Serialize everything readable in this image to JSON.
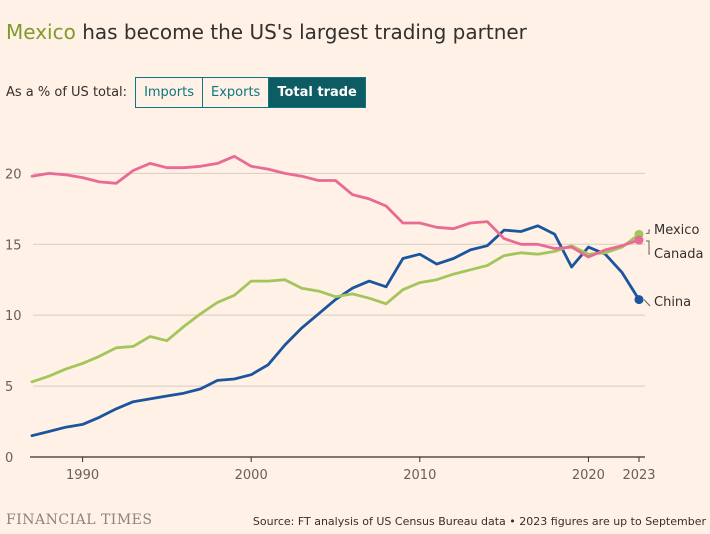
{
  "title": {
    "highlight": "Mexico",
    "rest": " has become the US's largest trading partner"
  },
  "controls": {
    "label": "As a % of US total:",
    "options": [
      "Imports",
      "Exports",
      "Total trade"
    ],
    "selected": "Total trade"
  },
  "footer": {
    "logo": "FINANCIAL TIMES",
    "source": "Source: FT analysis of US Census Bureau data • 2023 figures are up to September"
  },
  "colors": {
    "background": "#fff1e5",
    "mexico": "#a3c65a",
    "canada": "#e96b94",
    "china": "#1a559e",
    "highlight": "#809b2a",
    "button": "#0d7680"
  },
  "chart_data": {
    "type": "line",
    "xlim": [
      1987,
      2023
    ],
    "ylim": [
      0,
      22
    ],
    "x_ticks": [
      1990,
      2000,
      2010,
      2020,
      2023
    ],
    "x_tick_labels": [
      "1990",
      "2000",
      "2010",
      "2020",
      "2023"
    ],
    "y_ticks": [
      0,
      5,
      10,
      15,
      20
    ],
    "y_tick_labels": [
      "0",
      "5",
      "10",
      "15",
      "20"
    ],
    "grid": true,
    "x": [
      1987,
      1988,
      1989,
      1990,
      1991,
      1992,
      1993,
      1994,
      1995,
      1996,
      1997,
      1998,
      1999,
      2000,
      2001,
      2002,
      2003,
      2004,
      2005,
      2006,
      2007,
      2008,
      2009,
      2010,
      2011,
      2012,
      2013,
      2014,
      2015,
      2016,
      2017,
      2018,
      2019,
      2020,
      2021,
      2022,
      2023
    ],
    "series": [
      {
        "name": "Mexico",
        "color": "#a3c65a",
        "end_marker": true,
        "values": [
          5.3,
          5.7,
          6.2,
          6.6,
          7.1,
          7.7,
          7.8,
          8.5,
          8.2,
          9.2,
          10.1,
          10.9,
          11.4,
          12.4,
          12.4,
          12.5,
          11.9,
          11.7,
          11.3,
          11.5,
          11.2,
          10.8,
          11.8,
          12.3,
          12.5,
          12.9,
          13.2,
          13.5,
          14.2,
          14.4,
          14.3,
          14.5,
          14.9,
          14.3,
          14.4,
          14.8,
          15.7
        ]
      },
      {
        "name": "Canada",
        "color": "#e96b94",
        "end_marker": true,
        "values": [
          19.8,
          20.0,
          19.9,
          19.7,
          19.4,
          19.3,
          20.2,
          20.7,
          20.4,
          20.4,
          20.5,
          20.7,
          21.2,
          20.5,
          20.3,
          20.0,
          19.8,
          19.5,
          19.5,
          18.5,
          18.2,
          17.7,
          16.5,
          16.5,
          16.2,
          16.1,
          16.5,
          16.6,
          15.4,
          15.0,
          15.0,
          14.7,
          14.8,
          14.1,
          14.6,
          14.9,
          15.3
        ]
      },
      {
        "name": "China",
        "color": "#1a559e",
        "end_marker": true,
        "values": [
          1.5,
          1.8,
          2.1,
          2.3,
          2.8,
          3.4,
          3.9,
          4.1,
          4.3,
          4.5,
          4.8,
          5.4,
          5.5,
          5.8,
          6.5,
          7.9,
          9.1,
          10.1,
          11.1,
          11.9,
          12.4,
          12.0,
          14.0,
          14.3,
          13.6,
          14.0,
          14.6,
          14.9,
          16.0,
          15.9,
          16.3,
          15.7,
          13.4,
          14.8,
          14.3,
          13.0,
          11.1
        ]
      }
    ]
  }
}
